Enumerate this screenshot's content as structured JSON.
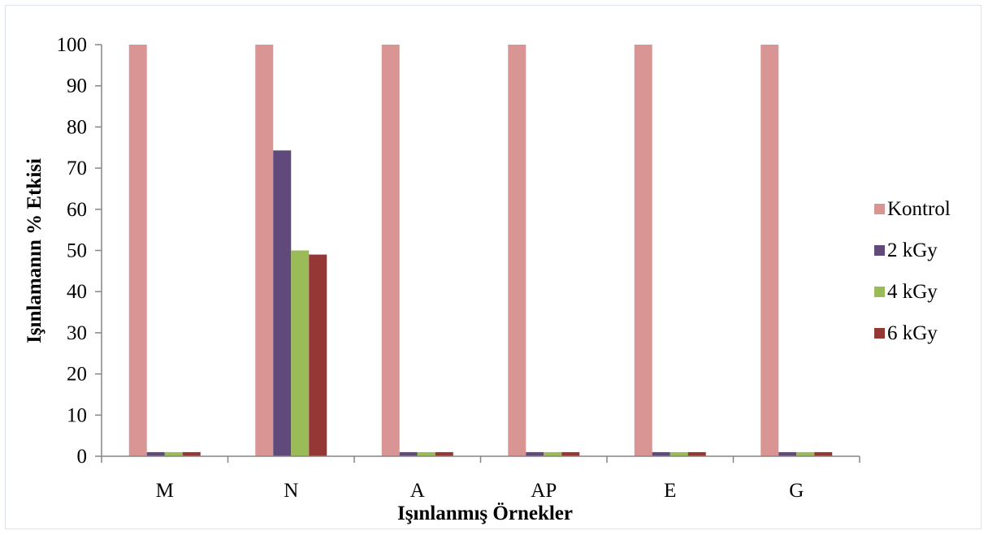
{
  "chart_data": {
    "type": "bar",
    "title": "",
    "xlabel": "Işınlanmış Örnekler",
    "ylabel": "Işınlamanın % Etkisi",
    "categories": [
      "M",
      "N",
      "A",
      "AP",
      "E",
      "G"
    ],
    "series": [
      {
        "name": "Kontrol",
        "color": "#d99594",
        "values": [
          100,
          100,
          100,
          100,
          100,
          100
        ]
      },
      {
        "name": "2 kGy",
        "color": "#604a7b",
        "values": [
          1,
          74.3,
          1,
          1,
          1,
          1
        ]
      },
      {
        "name": "4 kGy",
        "color": "#9bbb59",
        "values": [
          1,
          50,
          1,
          1,
          1,
          1
        ]
      },
      {
        "name": "6 kGy",
        "color": "#953735",
        "values": [
          1,
          49,
          1,
          1,
          1,
          1
        ]
      }
    ],
    "ylim": [
      0,
      100
    ],
    "yticks": [
      0,
      10,
      20,
      30,
      40,
      50,
      60,
      70,
      80,
      90,
      100
    ],
    "grid": false,
    "legend": "right"
  }
}
